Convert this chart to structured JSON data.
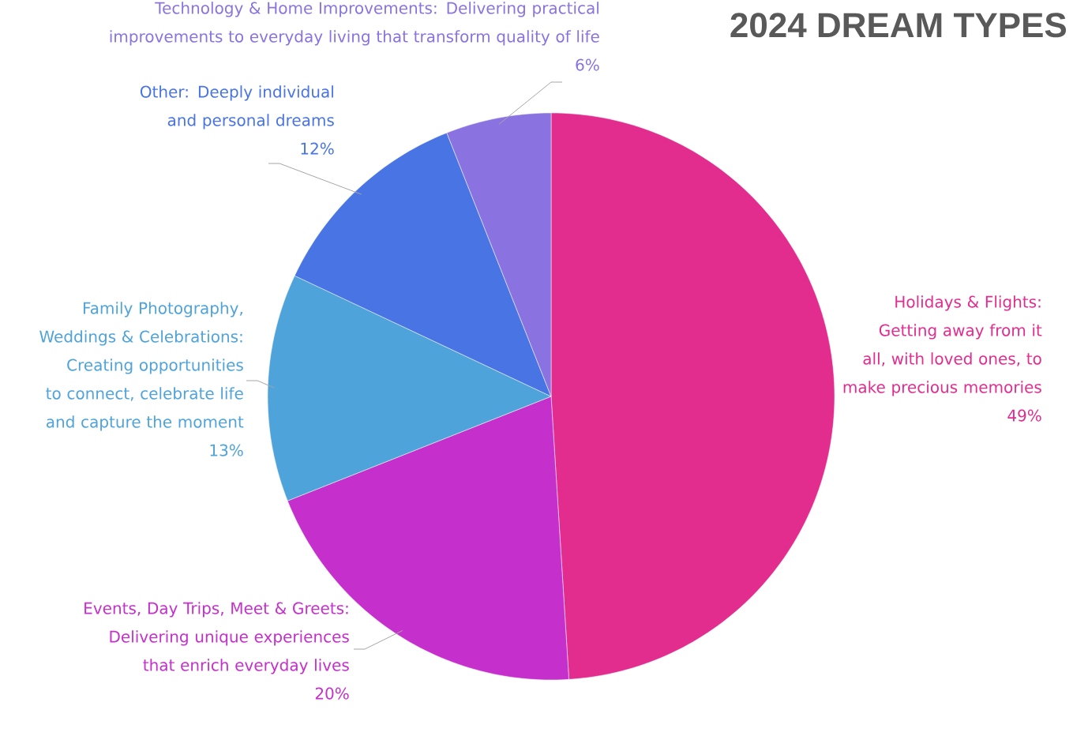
{
  "chart_data": {
    "type": "pie",
    "title": "2024 DREAM TYPES",
    "categories": [
      "Holidays & Flights: Getting away from it all, with loved ones, to make precious memories",
      "Events, Day Trips, Meet & Greets: Delivering unique experiences that enrich everyday lives",
      "Family Photography, Weddings & Celebrations: Creating opportunities to connect, celebrate life and capture the moment",
      "Other: Deeply individual and personal dreams",
      "Technology & Home Improvements: Delivering practical improvements to everyday living that transform quality of life"
    ],
    "values": [
      49,
      20,
      13,
      12,
      6
    ],
    "value_labels": [
      "49%",
      "20%",
      "13%",
      "12%",
      "6%"
    ],
    "colors": [
      "#e22d8f",
      "#c52fcb",
      "#4fa3db",
      "#4874e4",
      "#8a73e0"
    ]
  }
}
